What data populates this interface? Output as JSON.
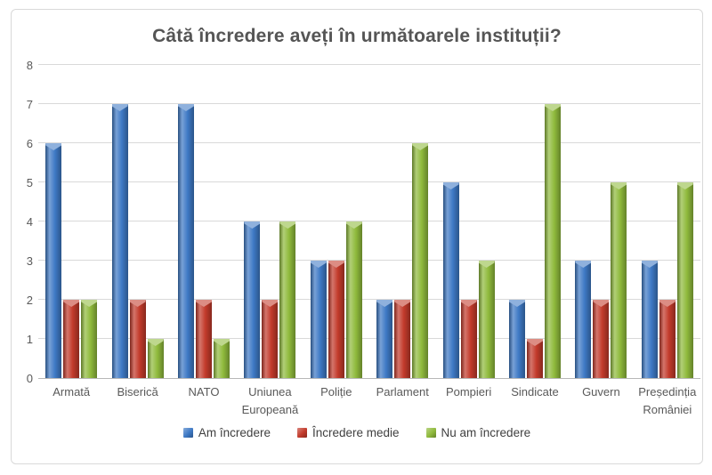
{
  "chart_data": {
    "type": "bar",
    "title": "Câtă încredere aveți în următoarele instituții?",
    "categories": [
      "Armată",
      "Biserică",
      "NATO",
      "Uniunea Europeană",
      "Poliție",
      "Parlament",
      "Pompieri",
      "Sindicate",
      "Guvern",
      "Președinția României"
    ],
    "series": [
      {
        "name": "Am încredere",
        "color": "#3e79c5",
        "values": [
          6,
          7,
          7,
          4,
          3,
          2,
          5,
          2,
          3,
          3
        ]
      },
      {
        "name": "Încredere medie",
        "color": "#c23a2b",
        "values": [
          2,
          2,
          2,
          2,
          3,
          2,
          2,
          1,
          2,
          2
        ]
      },
      {
        "name": "Nu am încredere",
        "color": "#8fba3c",
        "values": [
          2,
          1,
          1,
          4,
          4,
          6,
          3,
          7,
          5,
          5
        ]
      }
    ],
    "ylim": [
      0,
      8
    ],
    "ytick_step": 1,
    "grid": "horizontal",
    "legend_position": "bottom",
    "colors": {
      "gridline": "#d9d9d9",
      "axis_line": "#b7b7b7",
      "tick_text": "#595959",
      "title_text": "#555555",
      "legend_text": "#404040",
      "frame_border": "#d9d9d9"
    }
  }
}
